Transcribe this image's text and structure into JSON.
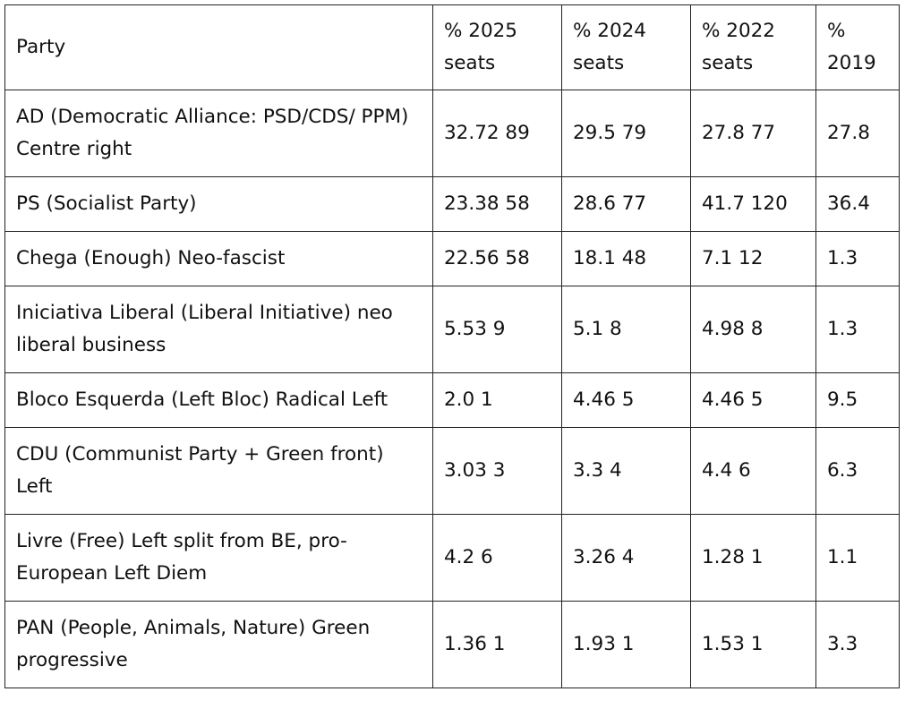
{
  "table": {
    "header": [
      "Party",
      "% 2025 seats",
      "% 2024 seats",
      "% 2022 seats",
      "% 2019"
    ],
    "rows": [
      [
        "AD (Democratic Alliance: PSD/CDS/ PPM) Centre right",
        "32.72 89",
        "29.5 79",
        "27.8 77",
        "27.8"
      ],
      [
        "PS (Socialist Party)",
        "23.38 58",
        "28.6 77",
        "41.7 120",
        "36.4"
      ],
      [
        "Chega (Enough) Neo-fascist",
        "22.56 58",
        "18.1 48",
        "7.1 12",
        "1.3"
      ],
      [
        "Iniciativa Liberal (Liberal Initiative) neo liberal business",
        "5.53 9",
        "5.1 8",
        "4.98 8",
        "1.3"
      ],
      [
        "Bloco Esquerda (Left Bloc) Radical Left",
        "2.0 1",
        "4.46 5",
        "4.46 5",
        "9.5"
      ],
      [
        "CDU (Communist Party + Green front) Left",
        "3.03 3",
        "3.3 4",
        "4.4 6",
        "6.3"
      ],
      [
        "Livre (Free) Left split from BE, pro-European Left Diem",
        "4.2 6",
        "3.26 4",
        "1.28 1",
        "1.1"
      ],
      [
        "PAN (People, Animals, Nature) Green progressive",
        "1.36 1",
        "1.93 1",
        "1.53 1",
        "3.3"
      ]
    ]
  }
}
